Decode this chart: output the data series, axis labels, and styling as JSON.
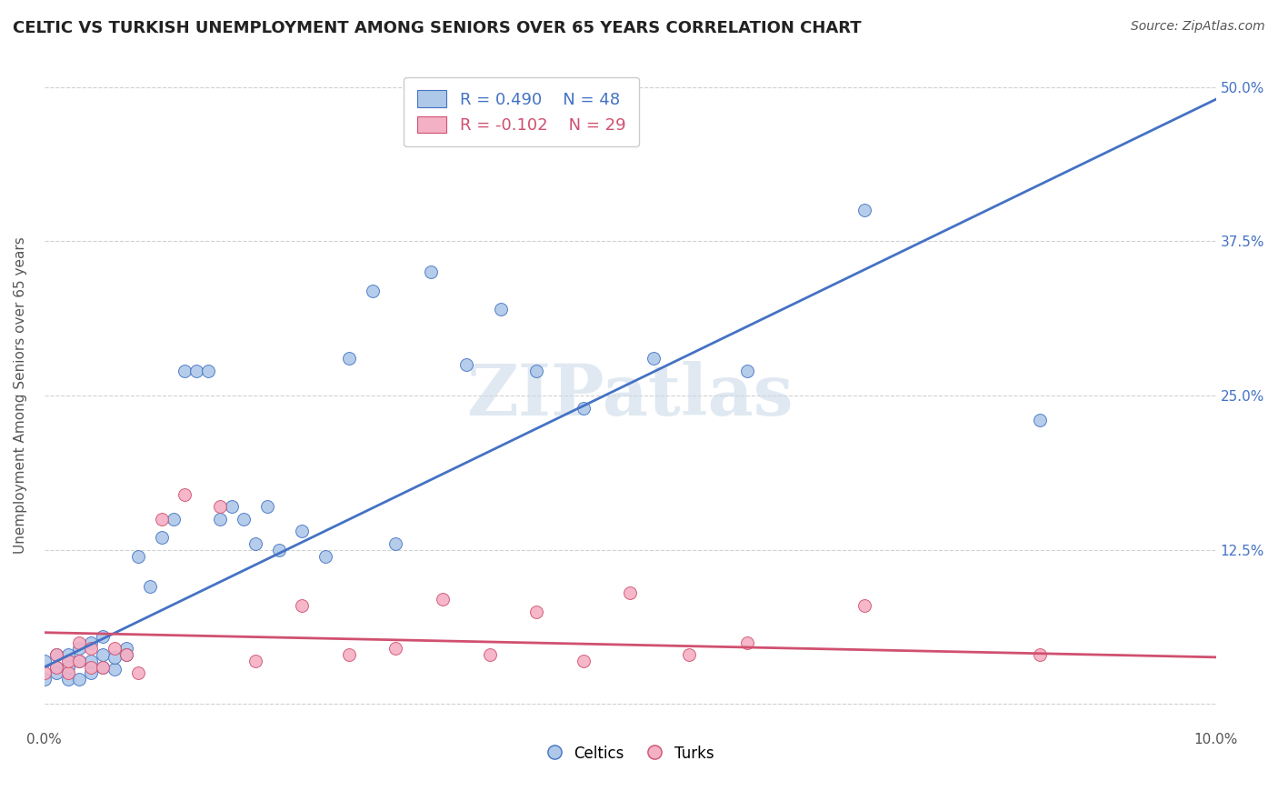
{
  "title": "CELTIC VS TURKISH UNEMPLOYMENT AMONG SENIORS OVER 65 YEARS CORRELATION CHART",
  "source": "Source: ZipAtlas.com",
  "ylabel": "Unemployment Among Seniors over 65 years",
  "xlabel": "",
  "xlim": [
    0.0,
    0.1
  ],
  "ylim": [
    -0.02,
    0.52
  ],
  "xticks": [
    0.0,
    0.02,
    0.04,
    0.06,
    0.08,
    0.1
  ],
  "xtick_labels": [
    "0.0%",
    "",
    "",
    "",
    "",
    "10.0%"
  ],
  "yticks": [
    0.0,
    0.125,
    0.25,
    0.375,
    0.5
  ],
  "ytick_labels": [
    "",
    "12.5%",
    "25.0%",
    "37.5%",
    "50.0%"
  ],
  "legend_labels": [
    "Celtics",
    "Turks"
  ],
  "celtics_R": "0.490",
  "celtics_N": "48",
  "turks_R": "-0.102",
  "turks_N": "29",
  "celtics_color": "#adc8e8",
  "celtics_line_color": "#4472c4",
  "turks_color": "#f4b0c4",
  "turks_line_color": "#d05070",
  "watermark": "ZIPatlas",
  "background_color": "#ffffff",
  "grid_color": "#cccccc",
  "celtics_x": [
    0.0,
    0.0,
    0.001,
    0.001,
    0.001,
    0.002,
    0.002,
    0.002,
    0.003,
    0.003,
    0.003,
    0.004,
    0.004,
    0.004,
    0.005,
    0.005,
    0.005,
    0.006,
    0.006,
    0.007,
    0.007,
    0.008,
    0.009,
    0.01,
    0.011,
    0.012,
    0.013,
    0.014,
    0.015,
    0.016,
    0.017,
    0.018,
    0.019,
    0.02,
    0.022,
    0.024,
    0.026,
    0.028,
    0.03,
    0.033,
    0.036,
    0.039,
    0.042,
    0.046,
    0.052,
    0.06,
    0.07,
    0.085
  ],
  "celtics_y": [
    0.02,
    0.035,
    0.03,
    0.04,
    0.025,
    0.02,
    0.03,
    0.04,
    0.02,
    0.035,
    0.045,
    0.025,
    0.035,
    0.05,
    0.03,
    0.04,
    0.055,
    0.028,
    0.038,
    0.045,
    0.04,
    0.12,
    0.095,
    0.135,
    0.15,
    0.27,
    0.27,
    0.27,
    0.15,
    0.16,
    0.15,
    0.13,
    0.16,
    0.125,
    0.14,
    0.12,
    0.28,
    0.335,
    0.13,
    0.35,
    0.275,
    0.32,
    0.27,
    0.24,
    0.28,
    0.27,
    0.4,
    0.23
  ],
  "turks_x": [
    0.0,
    0.001,
    0.001,
    0.002,
    0.002,
    0.003,
    0.003,
    0.004,
    0.004,
    0.005,
    0.006,
    0.007,
    0.008,
    0.01,
    0.012,
    0.015,
    0.018,
    0.022,
    0.026,
    0.03,
    0.034,
    0.038,
    0.042,
    0.046,
    0.05,
    0.055,
    0.06,
    0.07,
    0.085
  ],
  "turks_y": [
    0.025,
    0.03,
    0.04,
    0.025,
    0.035,
    0.035,
    0.05,
    0.03,
    0.045,
    0.03,
    0.045,
    0.04,
    0.025,
    0.15,
    0.17,
    0.16,
    0.035,
    0.08,
    0.04,
    0.045,
    0.085,
    0.04,
    0.075,
    0.035,
    0.09,
    0.04,
    0.05,
    0.08,
    0.04
  ],
  "blue_line_x0": 0.0,
  "blue_line_y0": 0.03,
  "blue_line_x1": 0.1,
  "blue_line_y1": 0.49,
  "pink_line_x0": 0.0,
  "pink_line_y0": 0.058,
  "pink_line_x1": 0.1,
  "pink_line_y1": 0.038
}
